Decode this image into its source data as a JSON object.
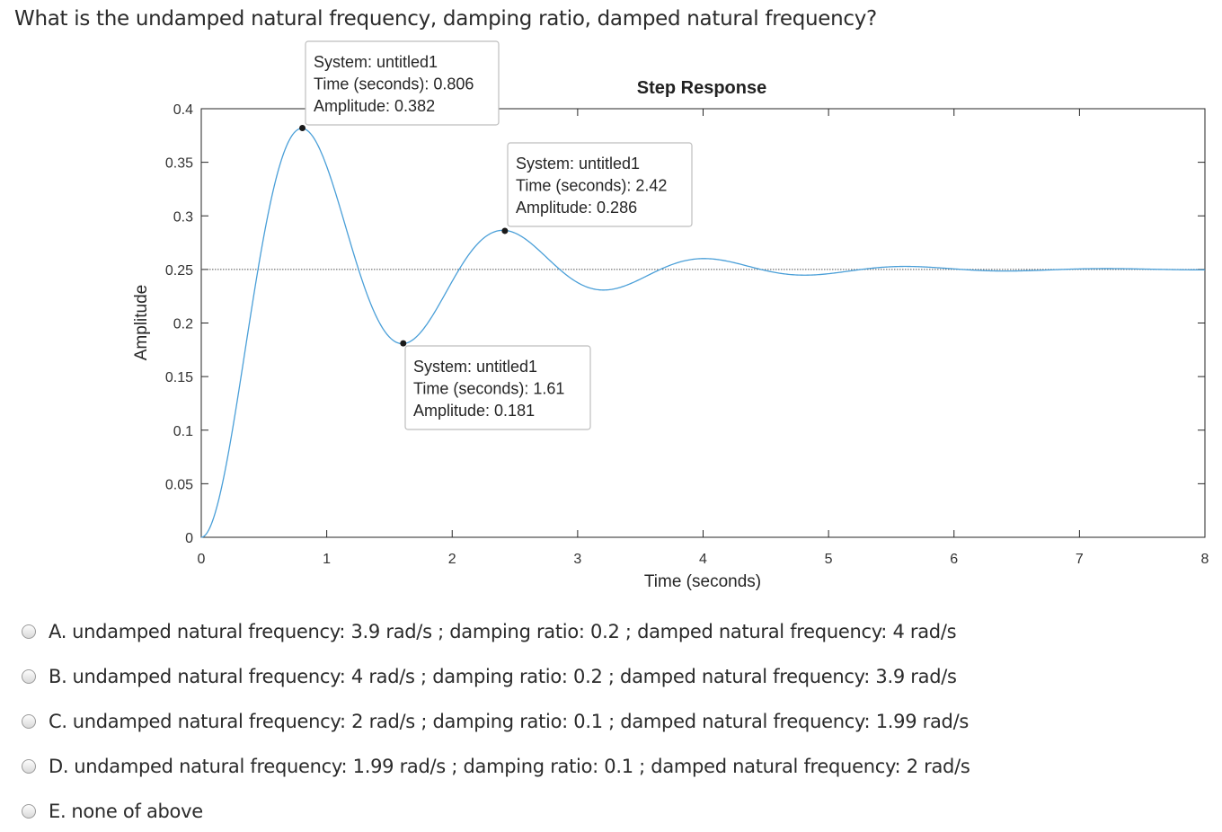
{
  "question": "What is the undamped natural frequency, damping ratio, damped natural frequency?",
  "chart_data": {
    "type": "line",
    "title": "Step Response",
    "xlabel": "Time (seconds)",
    "ylabel": "Amplitude",
    "xlim": [
      0,
      8
    ],
    "ylim": [
      0,
      0.4
    ],
    "xticks": [
      "0",
      "1",
      "2",
      "3",
      "4",
      "5",
      "6",
      "7",
      "8"
    ],
    "yticks": [
      "0",
      "0.05",
      "0.1",
      "0.15",
      "0.2",
      "0.25",
      "0.3",
      "0.35",
      "0.4"
    ],
    "steady_state": 0.25,
    "series": [
      {
        "color": "#4a9fd8",
        "model": {
          "final_value": 0.25,
          "damping_ratio": 0.2,
          "natural_frequency": 4.0
        }
      }
    ],
    "datatips": [
      {
        "system": "System: untitled1",
        "time": "Time (seconds): 0.806",
        "amplitude": "Amplitude: 0.382",
        "x": 0.806,
        "y": 0.382
      },
      {
        "system": "System: untitled1",
        "time": "Time (seconds): 1.61",
        "amplitude": "Amplitude: 0.181",
        "x": 1.61,
        "y": 0.181
      },
      {
        "system": "System: untitled1",
        "time": "Time (seconds): 2.42",
        "amplitude": "Amplitude: 0.286",
        "x": 2.42,
        "y": 0.286
      }
    ]
  },
  "options": [
    {
      "letter": "A.",
      "text": "undamped natural frequency: 3.9 rad/s ; damping ratio: 0.2 ; damped natural frequency: 4 rad/s"
    },
    {
      "letter": "B.",
      "text": "undamped natural frequency: 4 rad/s ; damping ratio: 0.2 ; damped natural frequency: 3.9 rad/s"
    },
    {
      "letter": "C.",
      "text": "undamped natural frequency: 2 rad/s ; damping ratio: 0.1 ; damped natural frequency: 1.99 rad/s"
    },
    {
      "letter": "D.",
      "text": "undamped natural frequency: 1.99 rad/s ; damping ratio: 0.1 ; damped natural frequency: 2 rad/s"
    },
    {
      "letter": "E.",
      "text": "none of above"
    }
  ]
}
